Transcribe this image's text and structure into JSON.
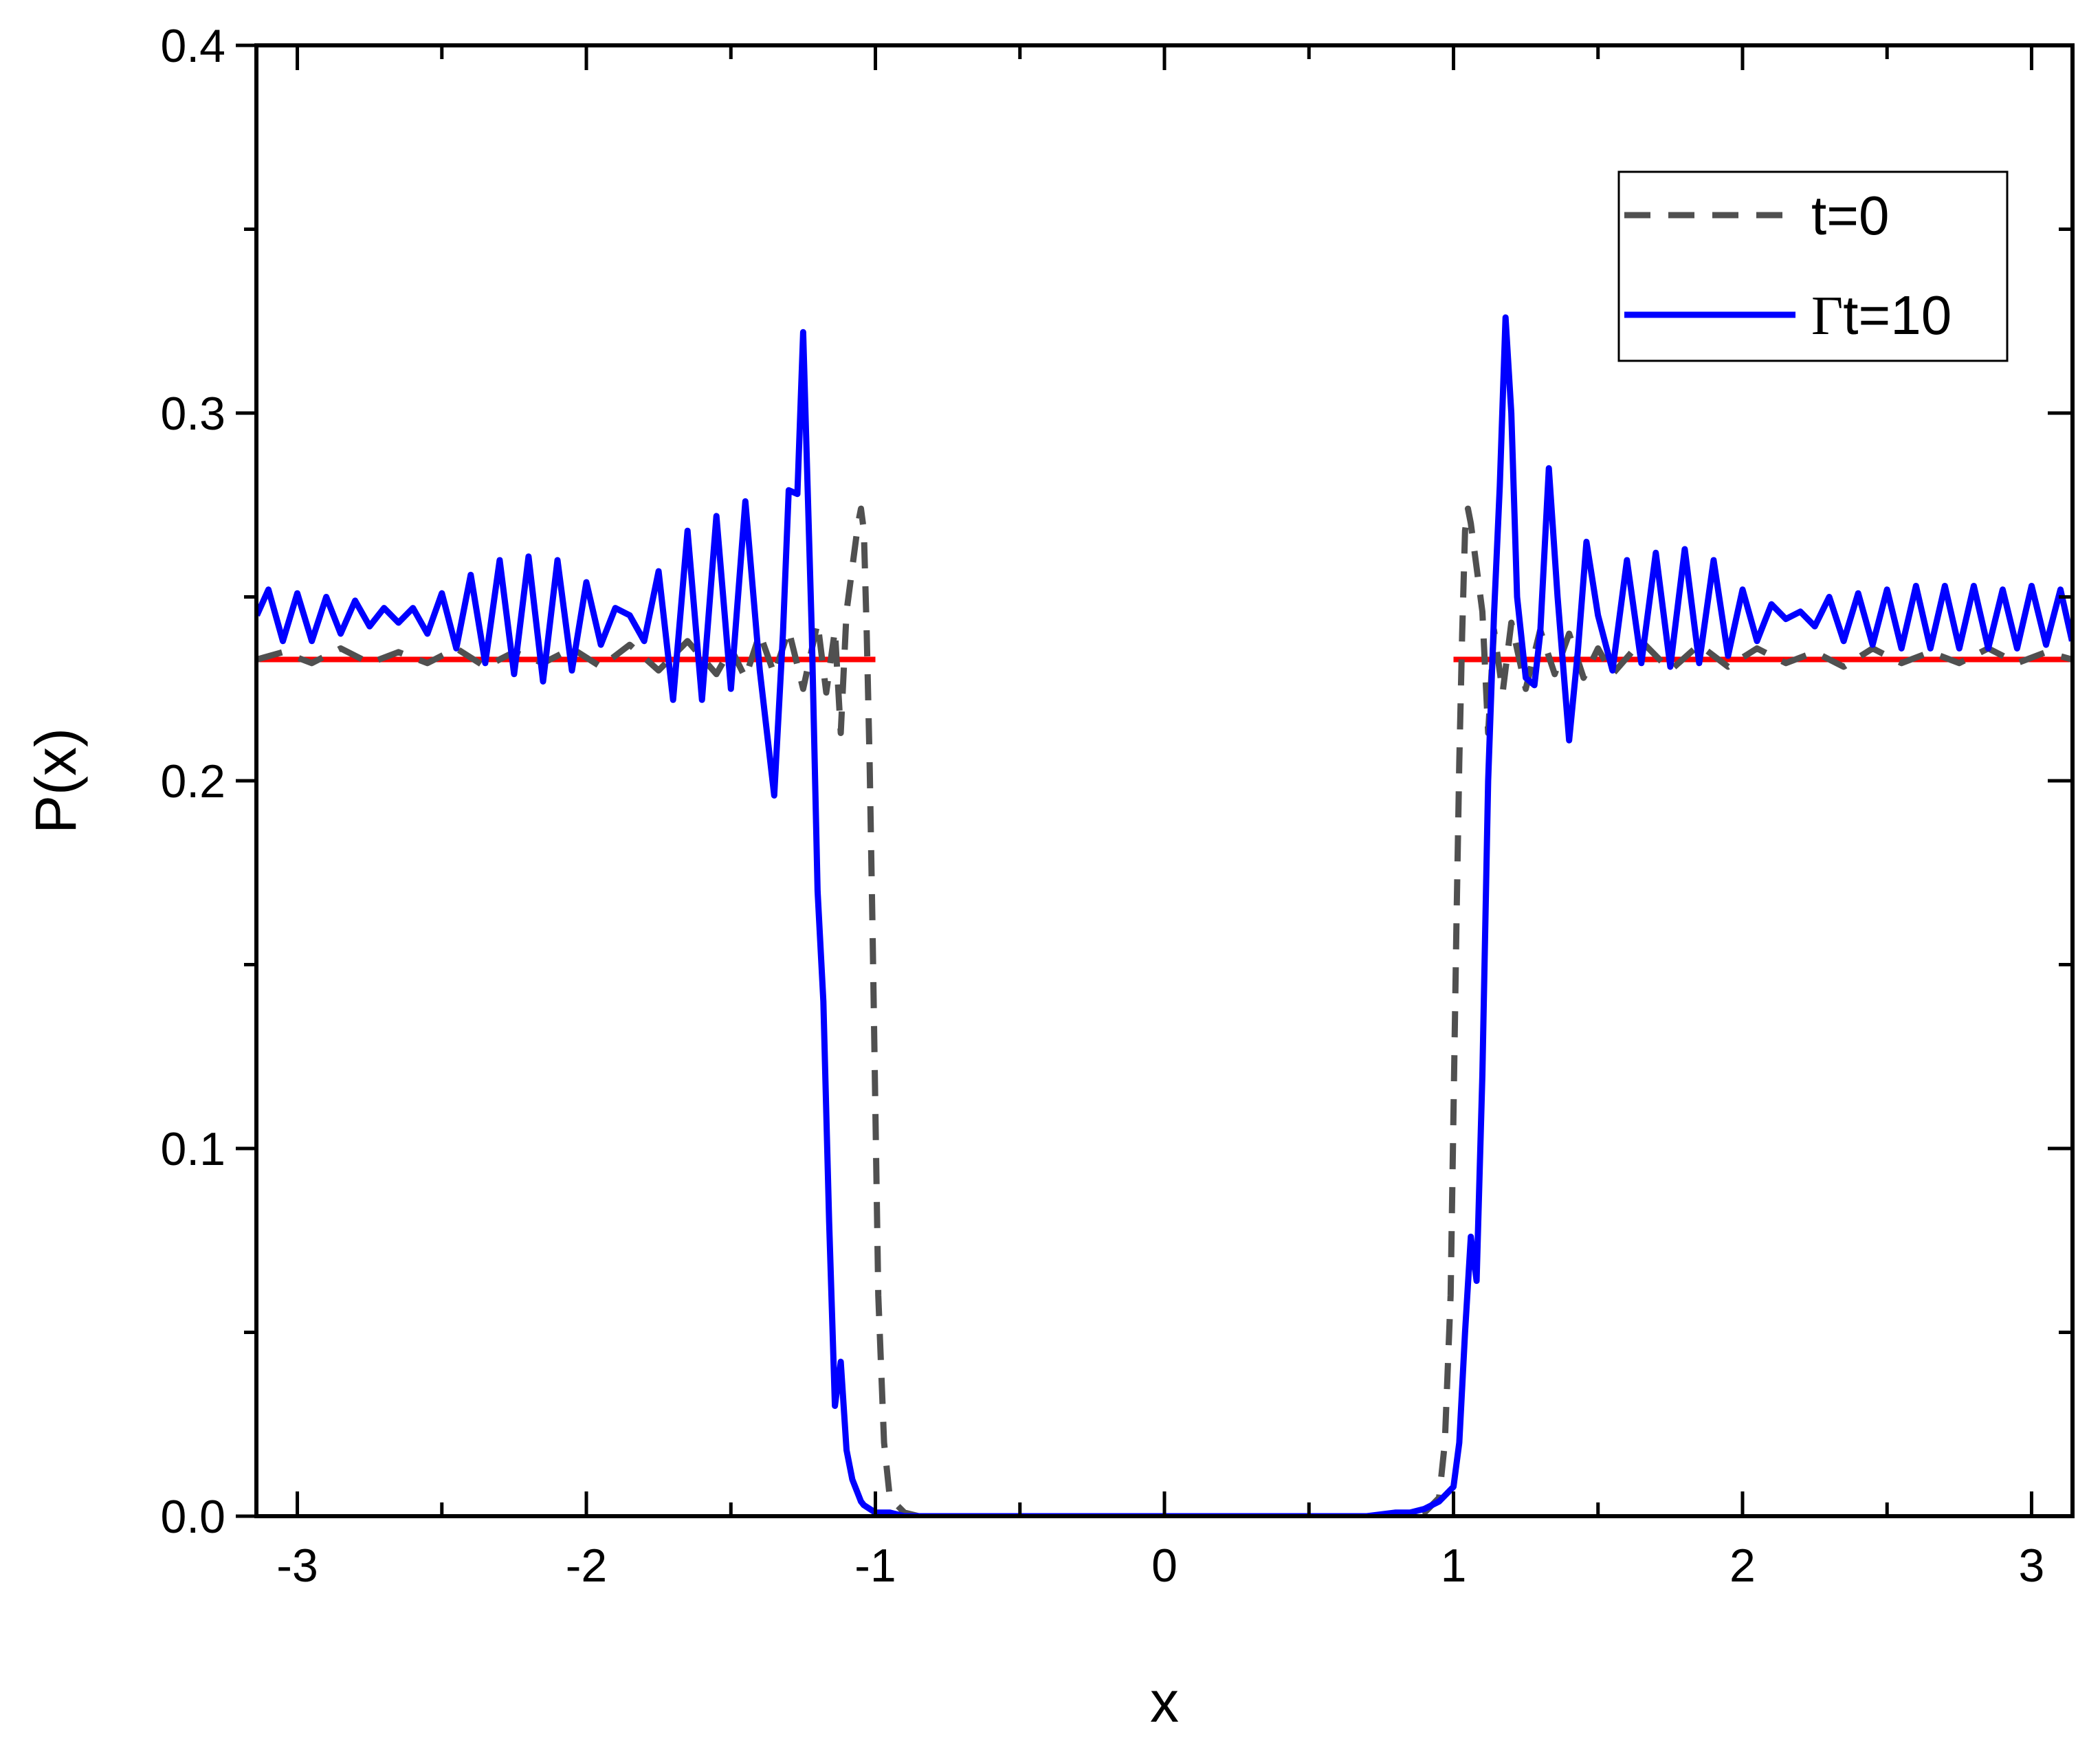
{
  "chart_data": {
    "type": "line",
    "xlabel": "x",
    "ylabel": "P(x)",
    "xlim": [
      -3.1416,
      3.1416
    ],
    "ylim": [
      0.0,
      0.4
    ],
    "x_ticks": [
      -3,
      -2,
      -1,
      0,
      1,
      2,
      3
    ],
    "x_tick_labels": [
      "-3",
      "-2",
      "-1",
      "0",
      "1",
      "2",
      "3"
    ],
    "x_minor_ticks": [
      -2.5,
      -1.5,
      -0.5,
      0.5,
      1.5,
      2.5
    ],
    "y_ticks": [
      0.0,
      0.1,
      0.2,
      0.3,
      0.4
    ],
    "y_tick_labels": [
      "0.0",
      "0.1",
      "0.2",
      "0.3",
      "0.4"
    ],
    "y_minor_ticks": [
      0.05,
      0.15,
      0.25,
      0.35
    ],
    "grid": false,
    "legend_position": "top-right",
    "legend": [
      {
        "prefix": "",
        "text": "t=0",
        "color": "#505050",
        "dash": true
      },
      {
        "prefix": "Γ",
        "text": "t=10",
        "color": "#0000ff",
        "dash": false
      }
    ],
    "reference_lines": [
      {
        "x": [
          -3.1416,
          -1.0
        ],
        "y": 0.233,
        "color": "#ff0000"
      },
      {
        "x": [
          1.0,
          3.1416
        ],
        "y": 0.233,
        "color": "#ff0000"
      }
    ],
    "series": [
      {
        "color": "#505050",
        "dash": true,
        "x": [
          -3.14,
          -3.05,
          -2.95,
          -2.85,
          -2.75,
          -2.65,
          -2.55,
          -2.45,
          -2.35,
          -2.25,
          -2.15,
          -2.05,
          -1.95,
          -1.85,
          -1.75,
          -1.65,
          -1.55,
          -1.5,
          -1.45,
          -1.4,
          -1.35,
          -1.3,
          -1.25,
          -1.2,
          -1.17,
          -1.14,
          -1.12,
          -1.1,
          -1.08,
          -1.06,
          -1.05,
          -1.04,
          -1.03,
          -1.02,
          -1.01,
          -1.0,
          -0.99,
          -0.97,
          -0.95,
          -0.9,
          -0.85,
          -0.8,
          -0.7,
          -0.6,
          -0.5,
          -0.4,
          -0.3,
          -0.2,
          -0.1,
          0.0,
          0.1,
          0.2,
          0.3,
          0.4,
          0.5,
          0.6,
          0.7,
          0.8,
          0.85,
          0.9,
          0.95,
          0.97,
          0.99,
          1.0,
          1.01,
          1.02,
          1.03,
          1.04,
          1.05,
          1.06,
          1.08,
          1.1,
          1.12,
          1.14,
          1.17,
          1.2,
          1.25,
          1.3,
          1.35,
          1.4,
          1.45,
          1.5,
          1.55,
          1.65,
          1.75,
          1.85,
          1.95,
          2.05,
          2.15,
          2.25,
          2.35,
          2.45,
          2.55,
          2.65,
          2.75,
          2.85,
          2.95,
          3.05,
          3.14
        ],
        "y": [
          0.233,
          0.235,
          0.232,
          0.236,
          0.232,
          0.235,
          0.232,
          0.236,
          0.231,
          0.235,
          0.232,
          0.236,
          0.231,
          0.237,
          0.23,
          0.238,
          0.229,
          0.236,
          0.228,
          0.24,
          0.229,
          0.241,
          0.225,
          0.243,
          0.224,
          0.241,
          0.213,
          0.246,
          0.258,
          0.27,
          0.274,
          0.268,
          0.24,
          0.205,
          0.16,
          0.11,
          0.06,
          0.02,
          0.005,
          0.001,
          0.0,
          0.0,
          0.0,
          0.0,
          0.0,
          0.0,
          0.0,
          0.0,
          0.0,
          0.0,
          0.0,
          0.0,
          0.0,
          0.0,
          0.0,
          0.0,
          0.0,
          0.0,
          0.0,
          0.001,
          0.005,
          0.02,
          0.06,
          0.11,
          0.16,
          0.205,
          0.24,
          0.268,
          0.274,
          0.27,
          0.258,
          0.246,
          0.213,
          0.241,
          0.224,
          0.243,
          0.225,
          0.241,
          0.229,
          0.24,
          0.228,
          0.236,
          0.229,
          0.238,
          0.23,
          0.237,
          0.231,
          0.236,
          0.232,
          0.235,
          0.231,
          0.236,
          0.232,
          0.235,
          0.232,
          0.236,
          0.232,
          0.235,
          0.233
        ]
      },
      {
        "color": "#0000ff",
        "dash": false,
        "x": [
          -3.14,
          -3.1,
          -3.05,
          -3.0,
          -2.95,
          -2.9,
          -2.85,
          -2.8,
          -2.75,
          -2.7,
          -2.65,
          -2.6,
          -2.55,
          -2.5,
          -2.45,
          -2.4,
          -2.35,
          -2.3,
          -2.25,
          -2.2,
          -2.15,
          -2.1,
          -2.05,
          -2.0,
          -1.95,
          -1.9,
          -1.85,
          -1.8,
          -1.75,
          -1.7,
          -1.65,
          -1.6,
          -1.55,
          -1.5,
          -1.45,
          -1.4,
          -1.35,
          -1.32,
          -1.3,
          -1.27,
          -1.25,
          -1.22,
          -1.2,
          -1.18,
          -1.16,
          -1.14,
          -1.12,
          -1.1,
          -1.08,
          -1.07,
          -1.06,
          -1.05,
          -1.04,
          -1.02,
          -1.0,
          -0.95,
          -0.9,
          -0.85,
          -0.8,
          -0.7,
          -0.6,
          -0.5,
          -0.4,
          -0.3,
          -0.2,
          -0.1,
          0.0,
          0.1,
          0.2,
          0.3,
          0.4,
          0.5,
          0.6,
          0.7,
          0.8,
          0.85,
          0.9,
          0.95,
          1.0,
          1.02,
          1.04,
          1.06,
          1.08,
          1.1,
          1.12,
          1.14,
          1.16,
          1.18,
          1.2,
          1.22,
          1.25,
          1.28,
          1.3,
          1.33,
          1.36,
          1.4,
          1.43,
          1.46,
          1.5,
          1.55,
          1.6,
          1.65,
          1.7,
          1.75,
          1.8,
          1.85,
          1.9,
          1.95,
          2.0,
          2.05,
          2.1,
          2.15,
          2.2,
          2.25,
          2.3,
          2.35,
          2.4,
          2.45,
          2.5,
          2.55,
          2.6,
          2.65,
          2.7,
          2.75,
          2.8,
          2.85,
          2.9,
          2.95,
          3.0,
          3.05,
          3.1,
          3.14
        ],
        "y": [
          0.245,
          0.252,
          0.238,
          0.251,
          0.238,
          0.25,
          0.24,
          0.249,
          0.242,
          0.247,
          0.243,
          0.247,
          0.24,
          0.251,
          0.236,
          0.256,
          0.232,
          0.26,
          0.229,
          0.261,
          0.227,
          0.26,
          0.23,
          0.254,
          0.237,
          0.247,
          0.245,
          0.238,
          0.257,
          0.222,
          0.268,
          0.222,
          0.272,
          0.225,
          0.276,
          0.23,
          0.196,
          0.24,
          0.279,
          0.278,
          0.322,
          0.24,
          0.17,
          0.14,
          0.08,
          0.03,
          0.042,
          0.018,
          0.01,
          0.008,
          0.006,
          0.004,
          0.003,
          0.002,
          0.001,
          0.001,
          0.0,
          0.0,
          0.0,
          0.0,
          0.0,
          0.0,
          0.0,
          0.0,
          0.0,
          0.0,
          0.0,
          0.0,
          0.0,
          0.0,
          0.0,
          0.0,
          0.0,
          0.0,
          0.001,
          0.001,
          0.002,
          0.004,
          0.008,
          0.02,
          0.05,
          0.076,
          0.064,
          0.12,
          0.2,
          0.245,
          0.28,
          0.326,
          0.3,
          0.25,
          0.228,
          0.226,
          0.24,
          0.285,
          0.25,
          0.211,
          0.235,
          0.265,
          0.245,
          0.23,
          0.26,
          0.232,
          0.262,
          0.231,
          0.263,
          0.232,
          0.26,
          0.234,
          0.252,
          0.238,
          0.248,
          0.244,
          0.246,
          0.242,
          0.25,
          0.238,
          0.251,
          0.237,
          0.252,
          0.236,
          0.253,
          0.236,
          0.253,
          0.236,
          0.253,
          0.236,
          0.252,
          0.236,
          0.253,
          0.237,
          0.252,
          0.238
        ]
      }
    ]
  }
}
